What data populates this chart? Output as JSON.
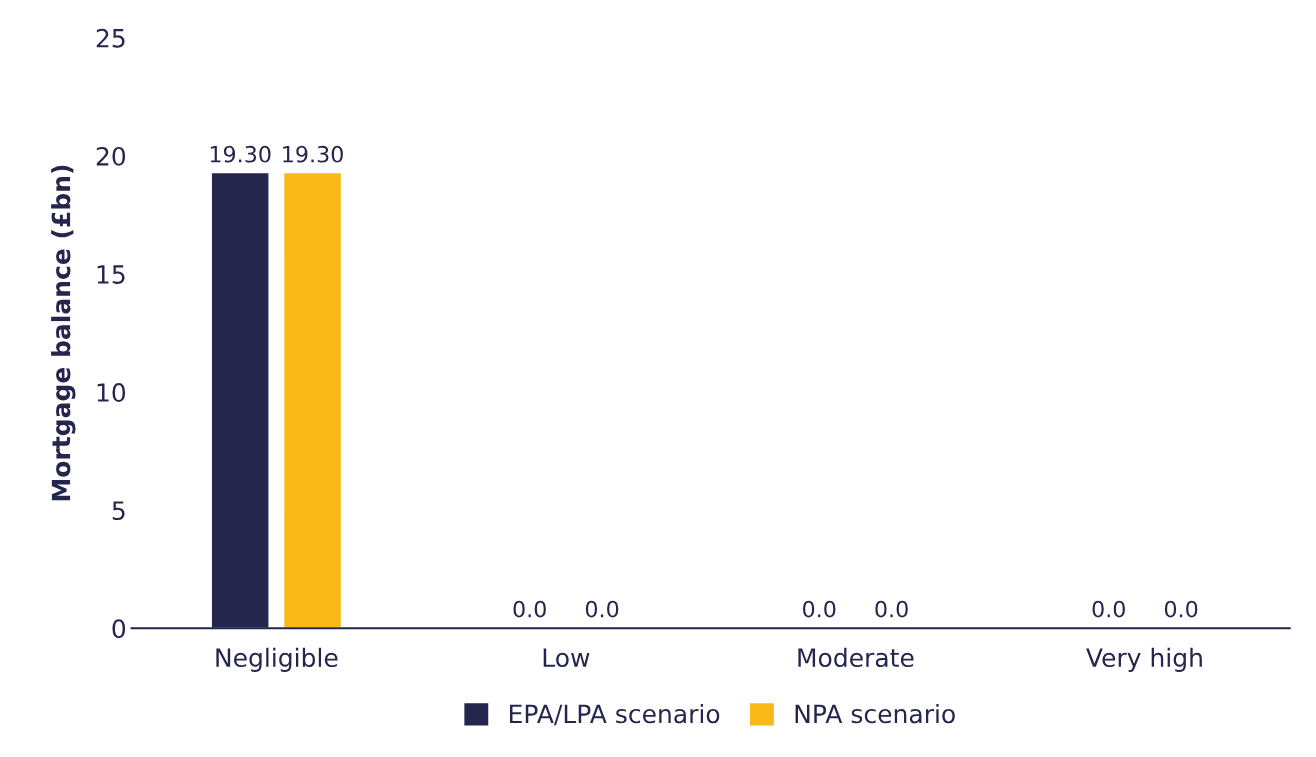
{
  "chart_data": {
    "type": "bar",
    "ylabel": "Mortgage balance (£bn)",
    "categories": [
      "Negligible",
      "Low",
      "Moderate",
      "Very high"
    ],
    "series": [
      {
        "name": "EPA/LPA scenario",
        "color": "#25264d",
        "values": [
          19.3,
          0.04,
          0.04,
          0.04
        ],
        "value_labels": [
          "19.30",
          "0.0",
          "0.0",
          "0.0"
        ]
      },
      {
        "name": "NPA scenario",
        "color": "#f9b918",
        "values": [
          19.3,
          0.04,
          0.04,
          0.04
        ],
        "value_labels": [
          "19.30",
          "0.0",
          "0.0",
          "0.0"
        ]
      }
    ],
    "ylim": [
      0,
      25
    ],
    "yticks": [
      0,
      5,
      10,
      15,
      20,
      25
    ],
    "grid": false,
    "legend": "bottom"
  }
}
